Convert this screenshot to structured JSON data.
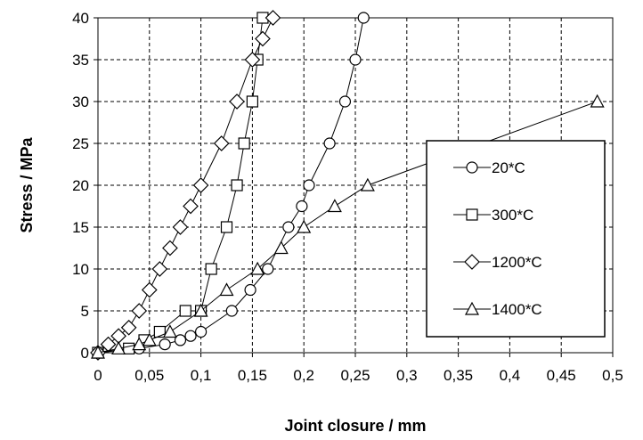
{
  "chart_data": {
    "type": "scatter",
    "xlabel": "Joint closure / mm",
    "ylabel": "Stress / MPa",
    "xlim": [
      0,
      0.5
    ],
    "ylim": [
      0,
      40
    ],
    "xticks": [
      0,
      0.05,
      0.1,
      0.15,
      0.2,
      0.25,
      0.3,
      0.35,
      0.4,
      0.45,
      0.5
    ],
    "xtick_labels": [
      "0",
      "0,05",
      "0,1",
      "0,15",
      "0,2",
      "0,25",
      "0,3",
      "0,35",
      "0,4",
      "0,45",
      "0,5"
    ],
    "yticks": [
      0,
      5,
      10,
      15,
      20,
      25,
      30,
      35,
      40
    ],
    "ytick_labels": [
      "0",
      "5",
      "10",
      "15",
      "20",
      "25",
      "30",
      "35",
      "40"
    ],
    "grid": true,
    "legend_position": "center-right",
    "series": [
      {
        "name": "20*C",
        "marker": "circle",
        "x": [
          0.0,
          0.04,
          0.065,
          0.08,
          0.09,
          0.1,
          0.13,
          0.148,
          0.165,
          0.185,
          0.198,
          0.205,
          0.225,
          0.24,
          0.25,
          0.258
        ],
        "y": [
          0,
          0.5,
          1.0,
          1.5,
          2.0,
          2.5,
          5.0,
          7.5,
          10.0,
          15.0,
          17.5,
          20.0,
          25.0,
          30.0,
          35.0,
          40.0
        ]
      },
      {
        "name": "300*C",
        "marker": "square",
        "x": [
          0.0,
          0.03,
          0.045,
          0.06,
          0.085,
          0.1,
          0.11,
          0.125,
          0.135,
          0.142,
          0.15,
          0.155,
          0.16
        ],
        "y": [
          0,
          0.5,
          1.5,
          2.5,
          5.0,
          5.0,
          10.0,
          15.0,
          20.0,
          25.0,
          30.0,
          35.0,
          40.0
        ]
      },
      {
        "name": "1200*C",
        "marker": "diamond",
        "x": [
          0.0,
          0.01,
          0.02,
          0.03,
          0.04,
          0.05,
          0.06,
          0.07,
          0.08,
          0.09,
          0.1,
          0.12,
          0.135,
          0.15,
          0.16,
          0.17
        ],
        "y": [
          0,
          1.0,
          2.0,
          3.0,
          5.0,
          7.5,
          10.0,
          12.5,
          15.0,
          17.5,
          20.0,
          25.0,
          30.0,
          35.0,
          37.5,
          40.0
        ]
      },
      {
        "name": "1400*C",
        "marker": "triangle",
        "x": [
          0.0,
          0.02,
          0.04,
          0.05,
          0.07,
          0.1,
          0.125,
          0.155,
          0.178,
          0.2,
          0.23,
          0.262,
          0.485
        ],
        "y": [
          0,
          0.5,
          1.0,
          1.5,
          2.5,
          5.0,
          7.5,
          10.0,
          12.5,
          15.0,
          17.5,
          20.0,
          30.0
        ]
      }
    ]
  }
}
